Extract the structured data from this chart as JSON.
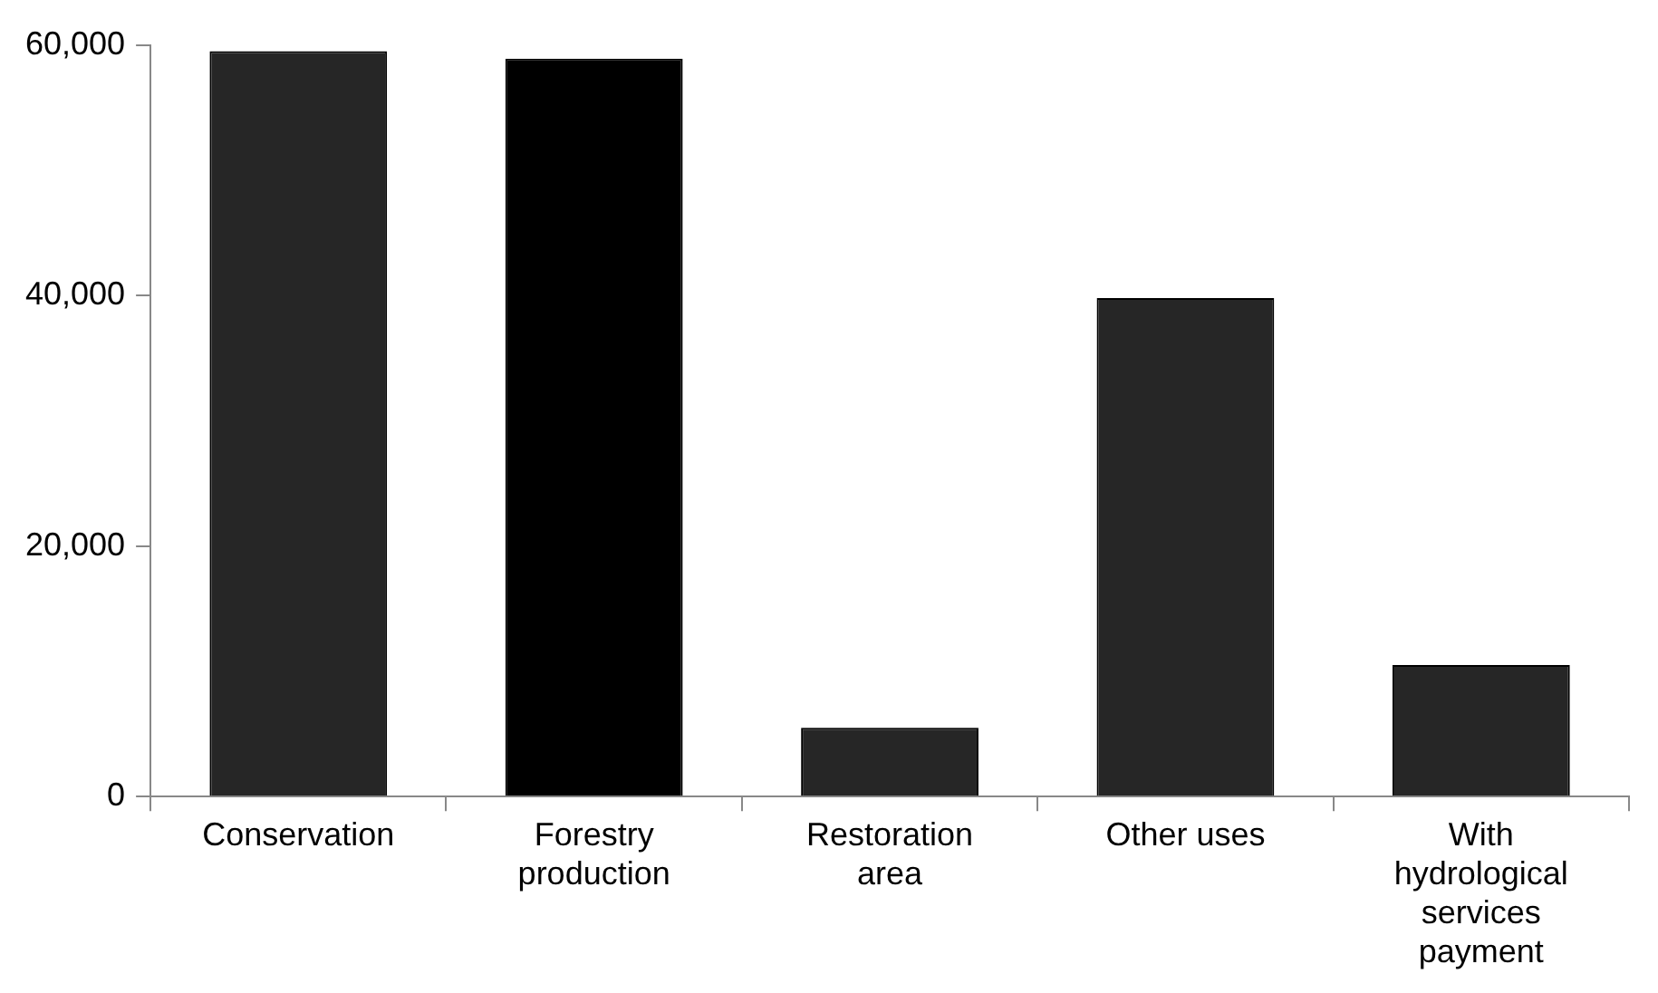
{
  "chart_data": {
    "type": "bar",
    "categories": [
      "Conservation",
      "Forestry production",
      "Restoration area",
      "Other uses",
      "With hydrological services payment"
    ],
    "values": [
      59500,
      58900,
      5500,
      39800,
      10500
    ],
    "colors": [
      "#262626",
      "#000000",
      "#262626",
      "#262626",
      "#262626"
    ],
    "ylim": [
      0,
      60000
    ],
    "yticks": [
      {
        "value": 0,
        "label": "0"
      },
      {
        "value": 20000,
        "label": "20,000"
      },
      {
        "value": 40000,
        "label": "40,000"
      },
      {
        "value": 60000,
        "label": "60,000"
      }
    ],
    "grid": false,
    "legend": false
  }
}
